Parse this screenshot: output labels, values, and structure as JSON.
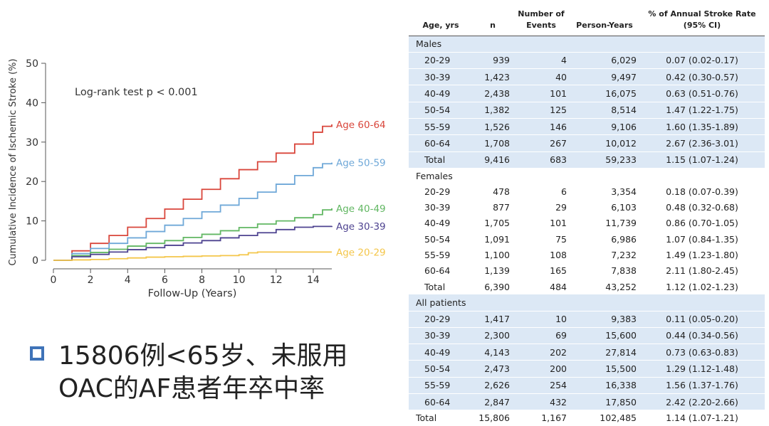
{
  "chart_data": {
    "type": "line",
    "annotation": "Log-rank test p < 0.001",
    "xlabel": "Follow-Up (Years)",
    "ylabel": "Cumulative Incidence of Ischemic Stroke (%)",
    "xlim": [
      0,
      15
    ],
    "ylim": [
      0,
      50
    ],
    "x_ticks": [
      0,
      2,
      4,
      6,
      8,
      10,
      12,
      14
    ],
    "y_ticks": [
      0,
      10,
      20,
      30,
      40,
      50
    ],
    "grid": false,
    "legend": "inline labels at line ends (right)",
    "series": [
      {
        "name": "Age 60-64",
        "color": "#d9463b",
        "x": [
          0,
          1,
          2,
          3,
          4,
          5,
          6,
          7,
          8,
          9,
          10,
          11,
          12,
          13,
          14,
          14.5,
          15
        ],
        "y": [
          0,
          2.4,
          4.3,
          6.3,
          8.4,
          10.6,
          13.0,
          15.5,
          18.0,
          20.7,
          23.0,
          25.0,
          27.2,
          29.5,
          32.5,
          34.0,
          34.5
        ]
      },
      {
        "name": "Age 50-59",
        "color": "#6fa8d8",
        "x": [
          0,
          1,
          2,
          3,
          4,
          5,
          6,
          7,
          8,
          9,
          10,
          11,
          12,
          13,
          14,
          14.5,
          15
        ],
        "y": [
          0,
          1.7,
          3.0,
          4.3,
          5.7,
          7.3,
          8.9,
          10.6,
          12.3,
          14.0,
          15.7,
          17.3,
          19.3,
          21.5,
          23.5,
          24.5,
          24.8
        ]
      },
      {
        "name": "Age 40-49",
        "color": "#62b763",
        "x": [
          0,
          1,
          2,
          3,
          4,
          5,
          6,
          7,
          8,
          9,
          10,
          11,
          12,
          13,
          14,
          14.5,
          15
        ],
        "y": [
          0,
          1.2,
          2.0,
          2.8,
          3.6,
          4.3,
          5.0,
          5.8,
          6.6,
          7.5,
          8.3,
          9.2,
          10.0,
          10.8,
          11.6,
          12.8,
          13.2
        ]
      },
      {
        "name": "Age 30-39",
        "color": "#4e4390",
        "x": [
          0,
          1,
          2,
          3,
          4,
          5,
          6,
          7,
          8,
          9,
          10,
          11,
          12,
          13,
          14,
          15
        ],
        "y": [
          0,
          0.9,
          1.5,
          2.1,
          2.7,
          3.2,
          3.8,
          4.4,
          5.0,
          5.7,
          6.3,
          7.0,
          7.8,
          8.4,
          8.6,
          8.7
        ]
      },
      {
        "name": "Age 20-29",
        "color": "#f4c64a",
        "x": [
          0,
          1,
          2,
          3,
          4,
          5,
          6,
          7,
          8,
          9,
          10,
          10.5,
          11,
          12,
          13,
          14,
          15
        ],
        "y": [
          0,
          0.1,
          0.2,
          0.4,
          0.6,
          0.8,
          0.9,
          1.0,
          1.1,
          1.2,
          1.4,
          1.9,
          2.1,
          2.1,
          2.1,
          2.1,
          2.1
        ]
      }
    ]
  },
  "caption": {
    "line1": "15806例<65岁、未服用",
    "line2": "OAC的AF患者年卒中率"
  },
  "table": {
    "headers": {
      "age": "Age, yrs",
      "n": "n",
      "events": "Number of Events",
      "person_years": "Person-Years",
      "rate": "% of Annual Stroke Rate (95% CI)"
    },
    "groups": [
      {
        "label": "Males",
        "rows": [
          {
            "age": "20-29",
            "n": "939",
            "events": "4",
            "py": "6,029",
            "rate": "0.07 (0.02-0.17)"
          },
          {
            "age": "30-39",
            "n": "1,423",
            "events": "40",
            "py": "9,497",
            "rate": "0.42 (0.30-0.57)"
          },
          {
            "age": "40-49",
            "n": "2,438",
            "events": "101",
            "py": "16,075",
            "rate": "0.63 (0.51-0.76)"
          },
          {
            "age": "50-54",
            "n": "1,382",
            "events": "125",
            "py": "8,514",
            "rate": "1.47 (1.22-1.75)"
          },
          {
            "age": "55-59",
            "n": "1,526",
            "events": "146",
            "py": "9,106",
            "rate": "1.60 (1.35-1.89)"
          },
          {
            "age": "60-64",
            "n": "1,708",
            "events": "267",
            "py": "10,012",
            "rate": "2.67 (2.36-3.01)"
          },
          {
            "age": "Total",
            "n": "9,416",
            "events": "683",
            "py": "59,233",
            "rate": "1.15 (1.07-1.24)"
          }
        ]
      },
      {
        "label": "Females",
        "rows": [
          {
            "age": "20-29",
            "n": "478",
            "events": "6",
            "py": "3,354",
            "rate": "0.18 (0.07-0.39)"
          },
          {
            "age": "30-39",
            "n": "877",
            "events": "29",
            "py": "6,103",
            "rate": "0.48 (0.32-0.68)"
          },
          {
            "age": "40-49",
            "n": "1,705",
            "events": "101",
            "py": "11,739",
            "rate": "0.86 (0.70-1.05)"
          },
          {
            "age": "50-54",
            "n": "1,091",
            "events": "75",
            "py": "6,986",
            "rate": "1.07 (0.84-1.35)"
          },
          {
            "age": "55-59",
            "n": "1,100",
            "events": "108",
            "py": "7,232",
            "rate": "1.49 (1.23-1.80)"
          },
          {
            "age": "60-64",
            "n": "1,139",
            "events": "165",
            "py": "7,838",
            "rate": "2.11 (1.80-2.45)"
          },
          {
            "age": "Total",
            "n": "6,390",
            "events": "484",
            "py": "43,252",
            "rate": "1.12 (1.02-1.23)"
          }
        ]
      },
      {
        "label": "All patients",
        "rows": [
          {
            "age": "20-29",
            "n": "1,417",
            "events": "10",
            "py": "9,383",
            "rate": "0.11 (0.05-0.20)"
          },
          {
            "age": "30-39",
            "n": "2,300",
            "events": "69",
            "py": "15,600",
            "rate": "0.44 (0.34-0.56)"
          },
          {
            "age": "40-49",
            "n": "4,143",
            "events": "202",
            "py": "27,814",
            "rate": "0.73 (0.63-0.83)"
          },
          {
            "age": "50-54",
            "n": "2,473",
            "events": "200",
            "py": "15,500",
            "rate": "1.29 (1.12-1.48)"
          },
          {
            "age": "55-59",
            "n": "2,626",
            "events": "254",
            "py": "16,338",
            "rate": "1.56 (1.37-1.76)"
          },
          {
            "age": "60-64",
            "n": "2,847",
            "events": "432",
            "py": "17,850",
            "rate": "2.42 (2.20-2.66)"
          }
        ]
      }
    ],
    "grand_total": {
      "age": "Total",
      "n": "15,806",
      "events": "1,167",
      "py": "102,485",
      "rate": "1.14 (1.07-1.21)"
    }
  }
}
